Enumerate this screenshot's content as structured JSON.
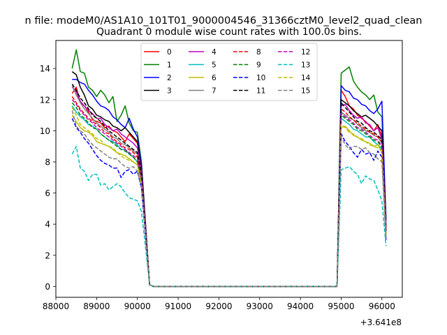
{
  "chart_data": {
    "type": "line",
    "suptitle": "n file: modeM0/AS1A10_101T01_9000004546_31366cztM0_level2_quad_clean",
    "title": "Quadrant 0 module wise count rates with 100.0s bins.",
    "xlabel": "",
    "ylabel": "",
    "offset_label": "+3.641e8",
    "xlim": [
      88000,
      96500
    ],
    "ylim": [
      -0.7,
      15.8
    ],
    "xticks": [
      88000,
      89000,
      90000,
      91000,
      92000,
      93000,
      94000,
      95000,
      96000
    ],
    "xtick_labels": [
      "88000",
      "89000",
      "90000",
      "91000",
      "92000",
      "93000",
      "94000",
      "95000",
      "96000"
    ],
    "yticks": [
      0,
      2,
      4,
      6,
      8,
      10,
      12,
      14
    ],
    "ytick_labels": [
      "0",
      "2",
      "4",
      "6",
      "8",
      "10",
      "12",
      "14"
    ],
    "grid": false,
    "legend_position": "top-center",
    "legend_columns": 4,
    "seg1_x": [
      88400,
      88500,
      88600,
      88700,
      88800,
      88900,
      89000,
      89100,
      89200,
      89300,
      89400,
      89500,
      89600,
      89700,
      89800,
      89900,
      90000,
      90100,
      90200,
      90300,
      90400
    ],
    "flat_x_end": 95000,
    "seg2_x": [
      95000,
      95100,
      95200,
      95300,
      95400,
      95500,
      95600,
      95700,
      95800,
      95900,
      96000,
      96100
    ],
    "series": [
      {
        "name": "0",
        "color": "#ff0000",
        "dash": "solid",
        "seg1": [
          12.4,
          12.8,
          11.8,
          11.6,
          11.2,
          10.7,
          10.6,
          10.5,
          10.2,
          10.3,
          10.0,
          9.9,
          9.6,
          9.3,
          9.8,
          9.5,
          9.2,
          7.9,
          4.0,
          0.1,
          0.0
        ],
        "seg2": [
          12.6,
          12.2,
          11.6,
          11.4,
          11.0,
          10.8,
          10.6,
          10.3,
          10.0,
          10.4,
          9.6,
          3.9
        ]
      },
      {
        "name": "1",
        "color": "#008000",
        "dash": "solid",
        "seg1": [
          14.0,
          15.2,
          13.8,
          13.7,
          12.8,
          12.6,
          12.2,
          12.6,
          12.3,
          11.8,
          12.2,
          10.6,
          11.0,
          11.6,
          10.5,
          10.0,
          9.9,
          8.0,
          4.0,
          0.1,
          0.0
        ],
        "seg2": [
          13.7,
          13.9,
          14.1,
          13.2,
          12.8,
          12.5,
          12.3,
          12.0,
          12.3,
          11.2,
          10.9,
          4.4
        ]
      },
      {
        "name": "2",
        "color": "#0000ff",
        "dash": "solid",
        "seg1": [
          13.3,
          13.3,
          13.1,
          13.0,
          12.6,
          12.3,
          11.9,
          11.6,
          11.5,
          11.3,
          10.9,
          10.7,
          10.4,
          10.2,
          10.8,
          10.1,
          9.6,
          7.8,
          3.9,
          0.1,
          0.0
        ],
        "seg2": [
          12.9,
          12.6,
          12.5,
          12.1,
          12.0,
          11.7,
          11.6,
          11.3,
          11.1,
          11.4,
          11.9,
          4.2
        ]
      },
      {
        "name": "3",
        "color": "#000000",
        "dash": "solid",
        "seg1": [
          13.8,
          13.6,
          12.8,
          12.3,
          11.6,
          11.4,
          11.0,
          10.9,
          10.7,
          10.6,
          10.3,
          10.2,
          10.0,
          10.2,
          9.9,
          9.6,
          9.3,
          7.6,
          3.9,
          0.1,
          0.0
        ],
        "seg2": [
          12.0,
          11.8,
          11.6,
          11.3,
          11.1,
          10.9,
          11.0,
          10.8,
          10.6,
          10.3,
          10.0,
          3.8
        ]
      },
      {
        "name": "4",
        "color": "#bf00bf",
        "dash": "solid",
        "seg1": [
          12.8,
          12.5,
          11.9,
          11.6,
          11.3,
          11.1,
          10.8,
          10.8,
          10.4,
          10.2,
          10.0,
          10.1,
          9.8,
          9.6,
          9.4,
          9.2,
          8.9,
          7.4,
          3.8,
          0.1,
          0.0
        ],
        "seg2": [
          11.6,
          11.7,
          11.3,
          11.0,
          10.8,
          10.9,
          10.5,
          10.4,
          10.0,
          10.2,
          9.4,
          3.6
        ]
      },
      {
        "name": "5",
        "color": "#00bfbf",
        "dash": "solid",
        "seg1": [
          11.6,
          11.2,
          10.9,
          10.7,
          10.4,
          10.3,
          10.1,
          9.8,
          9.6,
          9.4,
          9.3,
          9.1,
          8.8,
          8.8,
          8.5,
          8.3,
          8.0,
          6.8,
          3.5,
          0.1,
          0.0
        ],
        "seg2": [
          10.8,
          10.6,
          10.4,
          10.1,
          10.0,
          9.8,
          9.6,
          9.6,
          9.3,
          9.1,
          8.8,
          3.3
        ]
      },
      {
        "name": "6",
        "color": "#bfbf00",
        "dash": "solid",
        "seg1": [
          11.0,
          10.6,
          10.2,
          10.0,
          9.9,
          9.7,
          9.3,
          9.2,
          9.1,
          9.0,
          8.8,
          8.6,
          8.5,
          8.4,
          8.2,
          8.0,
          7.8,
          6.6,
          3.4,
          0.1,
          0.0
        ],
        "seg2": [
          10.2,
          10.3,
          10.0,
          9.7,
          9.6,
          9.4,
          9.3,
          9.2,
          9.0,
          9.1,
          8.6,
          3.2
        ]
      },
      {
        "name": "7",
        "color": "#808080",
        "dash": "solid",
        "seg1": [
          12.9,
          12.3,
          11.8,
          11.4,
          11.1,
          10.8,
          10.5,
          10.3,
          10.1,
          9.9,
          9.6,
          9.5,
          9.2,
          9.1,
          8.9,
          8.7,
          8.5,
          7.1,
          3.6,
          0.1,
          0.0
        ],
        "seg2": [
          11.2,
          11.0,
          10.8,
          10.7,
          10.4,
          10.2,
          10.0,
          9.9,
          9.7,
          9.6,
          9.2,
          3.5
        ]
      },
      {
        "name": "8",
        "color": "#ff0000",
        "dash": "dashed",
        "seg1": [
          12.2,
          11.8,
          11.4,
          11.1,
          10.8,
          10.6,
          10.4,
          10.2,
          9.9,
          9.8,
          9.5,
          9.3,
          9.1,
          8.9,
          8.8,
          8.6,
          8.3,
          7.0,
          3.6,
          0.1,
          0.0
        ],
        "seg2": [
          11.4,
          11.2,
          10.9,
          10.7,
          10.5,
          10.3,
          10.1,
          9.9,
          9.8,
          9.6,
          9.3,
          3.5
        ]
      },
      {
        "name": "9",
        "color": "#008000",
        "dash": "dashed",
        "seg1": [
          11.8,
          11.5,
          11.0,
          10.8,
          10.5,
          10.2,
          10.1,
          9.8,
          9.6,
          9.4,
          9.2,
          9.0,
          8.8,
          8.7,
          8.5,
          8.3,
          8.0,
          6.8,
          3.5,
          0.1,
          0.0
        ],
        "seg2": [
          11.0,
          10.8,
          10.6,
          10.4,
          10.1,
          10.0,
          9.8,
          9.6,
          9.4,
          9.3,
          8.9,
          3.4
        ]
      },
      {
        "name": "10",
        "color": "#0000ff",
        "dash": "dashed",
        "seg1": [
          10.8,
          10.2,
          9.9,
          9.5,
          9.2,
          8.8,
          8.4,
          8.1,
          7.9,
          7.8,
          7.6,
          7.6,
          7.0,
          7.4,
          7.5,
          7.2,
          7.4,
          6.3,
          3.2,
          0.1,
          0.0
        ],
        "seg2": [
          9.8,
          9.3,
          9.0,
          8.6,
          8.3,
          8.8,
          8.5,
          8.6,
          8.1,
          8.7,
          8.3,
          3.0
        ]
      },
      {
        "name": "11",
        "color": "#000000",
        "dash": "dashed",
        "seg1": [
          13.0,
          12.6,
          12.1,
          11.8,
          11.4,
          11.0,
          10.8,
          10.6,
          10.3,
          10.0,
          9.8,
          9.6,
          9.4,
          9.2,
          9.0,
          8.8,
          8.6,
          7.2,
          3.7,
          0.1,
          0.0
        ],
        "seg2": [
          11.8,
          11.5,
          11.2,
          10.9,
          10.6,
          10.5,
          10.2,
          10.0,
          9.9,
          9.7,
          9.4,
          3.6
        ]
      },
      {
        "name": "12",
        "color": "#bf00bf",
        "dash": "dashed",
        "seg1": [
          12.0,
          11.7,
          11.3,
          11.0,
          10.7,
          10.5,
          10.2,
          10.0,
          9.8,
          9.6,
          9.4,
          9.2,
          9.0,
          8.8,
          8.6,
          8.4,
          8.2,
          6.9,
          3.5,
          0.1,
          0.0
        ],
        "seg2": [
          11.1,
          10.9,
          10.7,
          10.5,
          10.2,
          10.1,
          9.9,
          9.7,
          9.5,
          9.4,
          9.0,
          3.4
        ]
      },
      {
        "name": "13",
        "color": "#00bfbf",
        "dash": "dashed",
        "seg1": [
          8.5,
          9.0,
          7.6,
          7.4,
          6.8,
          7.2,
          7.2,
          6.5,
          6.6,
          6.2,
          6.4,
          6.6,
          6.4,
          6.0,
          5.7,
          5.6,
          5.5,
          4.8,
          2.5,
          0.1,
          0.0
        ],
        "seg2": [
          7.5,
          7.6,
          7.7,
          7.4,
          7.2,
          6.6,
          7.1,
          6.9,
          6.8,
          6.2,
          5.5,
          2.6
        ]
      },
      {
        "name": "14",
        "color": "#bfbf00",
        "dash": "dashed",
        "seg1": [
          11.5,
          11.0,
          10.4,
          10.2,
          10.0,
          9.8,
          9.5,
          9.4,
          9.1,
          9.0,
          8.9,
          8.6,
          8.4,
          8.2,
          8.1,
          8.0,
          7.8,
          6.6,
          3.4,
          0.1,
          0.0
        ],
        "seg2": [
          10.4,
          10.2,
          9.9,
          9.8,
          9.6,
          9.5,
          9.3,
          9.1,
          9.0,
          8.9,
          8.7,
          3.3
        ]
      },
      {
        "name": "15",
        "color": "#808080",
        "dash": "dashed",
        "seg1": [
          11.3,
          10.3,
          10.0,
          9.8,
          9.4,
          9.1,
          8.9,
          8.7,
          8.5,
          8.3,
          8.2,
          8.2,
          7.9,
          7.7,
          7.6,
          7.7,
          7.4,
          6.4,
          3.3,
          0.1,
          0.0
        ],
        "seg2": [
          9.6,
          9.1,
          8.8,
          9.0,
          9.0,
          8.8,
          8.9,
          8.6,
          8.5,
          8.2,
          8.0,
          3.1
        ]
      }
    ]
  }
}
